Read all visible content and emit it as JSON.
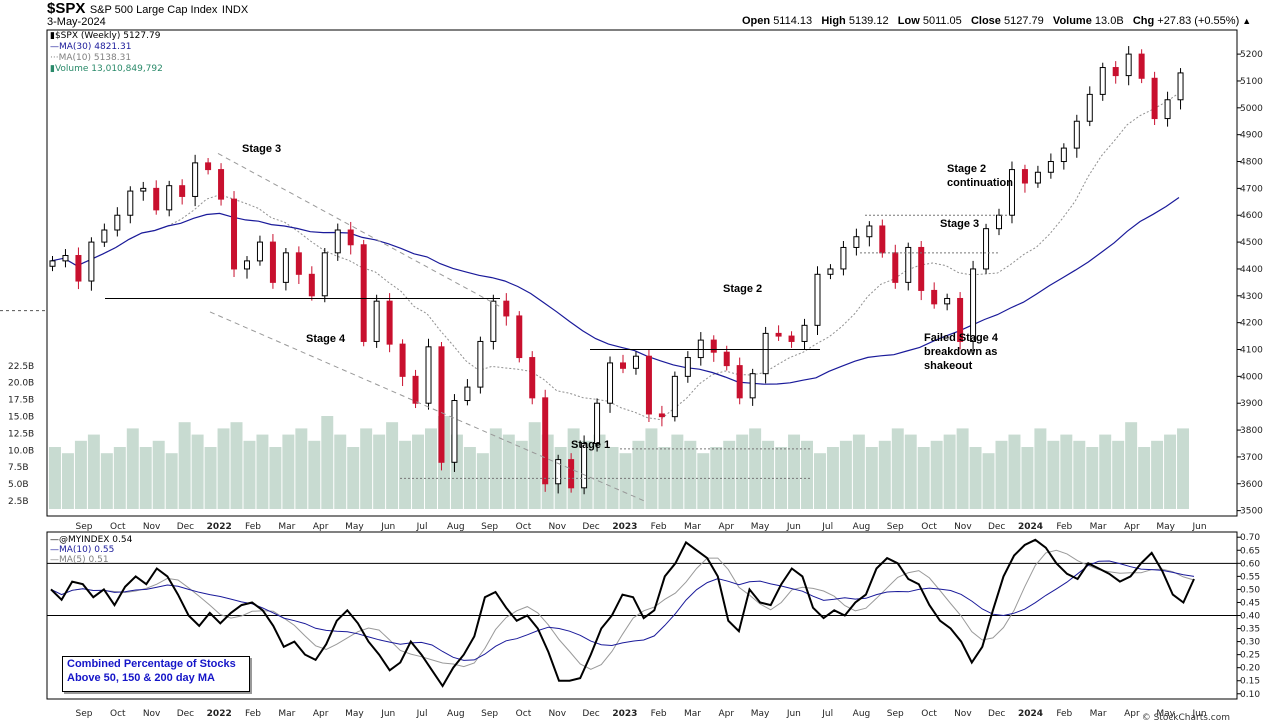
{
  "header": {
    "symbol": "$SPX",
    "name": "S&P 500 Large Cap Index",
    "exchange": "INDX",
    "date": "3-May-2024",
    "open_label": "Open",
    "open": "5114.13",
    "high_label": "High",
    "high": "5139.12",
    "low_label": "Low",
    "low": "5011.05",
    "close_label": "Close",
    "close": "5127.79",
    "volume_label": "Volume",
    "volume": "13.0B",
    "chg_label": "Chg",
    "chg": "+27.83 (+0.55%)"
  },
  "legend": {
    "price": "$SPX (Weekly) 5127.79",
    "ma30": "MA(30) 4821.31",
    "ma10": "MA(10) 5138.31",
    "volume": "Volume 13,010,849,792",
    "ind": "@MYINDEX 0.54",
    "ind_ma10": "MA(10) 0.55",
    "ind_ma5": "MA(5) 0.51"
  },
  "indicator_box": [
    "Combined Percentage of Stocks",
    "Above 50, 150 & 200 day MA"
  ],
  "watermark": "© StockCharts.com",
  "annotations": [
    {
      "text": "Stage 3",
      "sub": "",
      "x": "2022-03",
      "y": 4790
    },
    {
      "text": "Stage 4",
      "sub": "",
      "x": "2022-05",
      "y": 4040
    },
    {
      "text": "Stage 1",
      "sub": "",
      "x": "2022-11-25",
      "y": 3665
    },
    {
      "text": "Stage 2",
      "sub": "",
      "x": "2023-04",
      "y": 4225
    },
    {
      "text": "Stage 2",
      "sub": "continuation",
      "x": "2023-10-15",
      "y": 4640
    },
    {
      "text": "Stage 3",
      "sub": "",
      "x": "2023-09-25",
      "y": 4410
    },
    {
      "text": "Failed Stage 4",
      "sub": "breakdown as",
      "sub2": "shakeout",
      "x": "2023-10-01",
      "y": 4050
    }
  ],
  "colors": {
    "up": "#000000",
    "down": "#c8102e",
    "ma30": "#1a1a9a",
    "ma10": "#909090",
    "volume": "#c8dbd1",
    "indicator": "#000000",
    "ind_ma10": "#1a1a9a",
    "ind_ma5": "#9a9a9a",
    "box_text": "#1515c8"
  },
  "chart_data": [
    {
      "type": "candlestick",
      "title": "$SPX (Weekly)",
      "price_ylim": [
        3480,
        5260
      ],
      "price_ticks": [
        3500,
        3600,
        3700,
        3800,
        3900,
        4000,
        4100,
        4200,
        4300,
        4400,
        4500,
        4600,
        4700,
        4800,
        4900,
        5000,
        5100,
        5200
      ],
      "volume_ticks": [
        "2.5B",
        "5.0B",
        "7.5B",
        "10.0B",
        "12.5B",
        "15.0B",
        "17.5B",
        "20.0B",
        "22.5B"
      ],
      "x_labels": [
        "Sep",
        "Oct",
        "Nov",
        "Dec",
        "2022",
        "Feb",
        "Mar",
        "Apr",
        "May",
        "Jun",
        "Jul",
        "Aug",
        "Sep",
        "Oct",
        "Nov",
        "Dec",
        "2023",
        "Feb",
        "Mar",
        "Apr",
        "May",
        "Jun",
        "Jul",
        "Aug",
        "Sep",
        "Oct",
        "Nov",
        "Dec",
        "2024",
        "Feb",
        "Mar",
        "Apr",
        "May",
        "Jun"
      ],
      "close_key": [
        4430,
        4450,
        4355,
        4500,
        4545,
        4600,
        4690,
        4700,
        4620,
        4710,
        4670,
        4795,
        4770,
        4660,
        4400,
        4430,
        4500,
        4350,
        4460,
        4380,
        4300,
        4460,
        4545,
        4490,
        4130,
        4280,
        4120,
        4000,
        3900,
        4110,
        3680,
        3910,
        3960,
        4130,
        4280,
        4225,
        4070,
        3920,
        3600,
        3690,
        3585,
        3750,
        3900,
        4050,
        4030,
        4075,
        3860,
        3850,
        4000,
        4070,
        4135,
        4090,
        4040,
        3920,
        4010,
        4160,
        4150,
        4130,
        4190,
        4380,
        4400,
        4480,
        4520,
        4560,
        4460,
        4350,
        4480,
        4320,
        4270,
        4290,
        4130,
        4400,
        4550,
        4600,
        4770,
        4720,
        4760,
        4800,
        4850,
        4950,
        5050,
        5150,
        5120,
        5200,
        5110,
        4960,
        5030,
        5130
      ],
      "series": [
        {
          "name": "MA(30)",
          "last": 4821.31
        },
        {
          "name": "MA(10)",
          "last": 5138.31
        },
        {
          "name": "Volume",
          "last": "13.0B"
        }
      ],
      "levels": [
        4290,
        4100,
        4600,
        4460,
        3730,
        3620
      ]
    },
    {
      "type": "line",
      "title": "@MYINDEX",
      "ylim": [
        0.08,
        0.72
      ],
      "yticks": [
        "0.70",
        "0.65",
        "0.60",
        "0.55",
        "0.50",
        "0.45",
        "0.40",
        "0.35",
        "0.30",
        "0.25",
        "0.20",
        "0.15",
        "0.10"
      ],
      "reference_lines": [
        0.6,
        0.4
      ],
      "series": [
        {
          "name": "@MYINDEX",
          "last": 0.54
        },
        {
          "name": "MA(10)",
          "last": 0.55
        },
        {
          "name": "MA(5)",
          "last": 0.51
        }
      ],
      "values": [
        0.5,
        0.46,
        0.53,
        0.52,
        0.47,
        0.5,
        0.44,
        0.51,
        0.55,
        0.52,
        0.58,
        0.55,
        0.48,
        0.4,
        0.36,
        0.41,
        0.37,
        0.41,
        0.44,
        0.45,
        0.42,
        0.36,
        0.28,
        0.3,
        0.25,
        0.23,
        0.29,
        0.38,
        0.42,
        0.37,
        0.3,
        0.25,
        0.19,
        0.22,
        0.3,
        0.25,
        0.19,
        0.13,
        0.2,
        0.25,
        0.32,
        0.47,
        0.49,
        0.43,
        0.38,
        0.4,
        0.35,
        0.26,
        0.15,
        0.15,
        0.16,
        0.25,
        0.35,
        0.4,
        0.48,
        0.47,
        0.39,
        0.42,
        0.55,
        0.6,
        0.68,
        0.65,
        0.62,
        0.55,
        0.38,
        0.34,
        0.5,
        0.45,
        0.44,
        0.52,
        0.58,
        0.55,
        0.43,
        0.39,
        0.42,
        0.4,
        0.45,
        0.48,
        0.58,
        0.62,
        0.6,
        0.54,
        0.52,
        0.44,
        0.38,
        0.35,
        0.3,
        0.22,
        0.28,
        0.42,
        0.55,
        0.63,
        0.67,
        0.69,
        0.66,
        0.6,
        0.56,
        0.54,
        0.6,
        0.58,
        0.56,
        0.53,
        0.55,
        0.6,
        0.64,
        0.57,
        0.48,
        0.45,
        0.54
      ]
    }
  ]
}
